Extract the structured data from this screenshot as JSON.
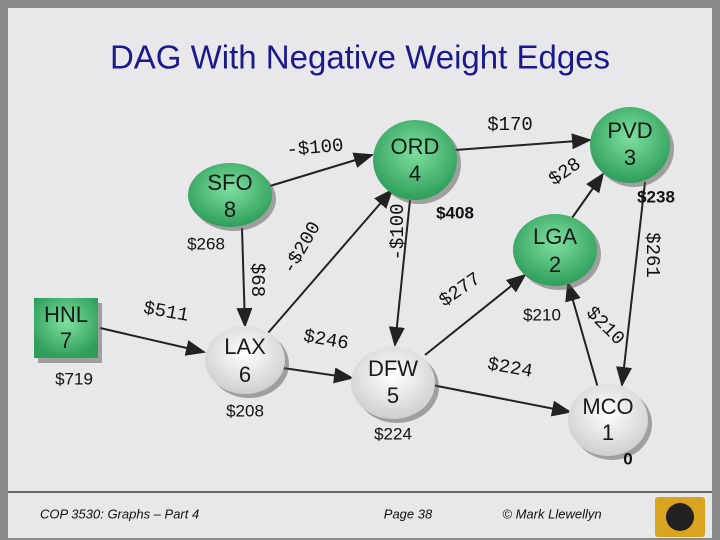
{
  "title": "DAG With Negative Weight Edges",
  "nodes": [
    {
      "name": "HNL",
      "number": "7",
      "distance": "$719"
    },
    {
      "name": "SFO",
      "number": "8",
      "distance": "$268"
    },
    {
      "name": "ORD",
      "number": "4",
      "distance": "$408"
    },
    {
      "name": "PVD",
      "number": "3",
      "distance": "$238"
    },
    {
      "name": "LGA",
      "number": "2",
      "distance": "$210"
    },
    {
      "name": "LAX",
      "number": "6",
      "distance": "$208"
    },
    {
      "name": "DFW",
      "number": "5",
      "distance": "$224"
    },
    {
      "name": "MCO",
      "number": "1",
      "distance": "0"
    }
  ],
  "edges": [
    {
      "label": "-$100"
    },
    {
      "label": "$170"
    },
    {
      "label": "$28"
    },
    {
      "label": "-$100"
    },
    {
      "label": "-$200"
    },
    {
      "label": "$68"
    },
    {
      "label": "$511"
    },
    {
      "label": "$246"
    },
    {
      "label": "$277"
    },
    {
      "label": "$261"
    },
    {
      "label": "$210"
    },
    {
      "label": "$224"
    }
  ],
  "footer": {
    "course": "COP 3530: Graphs – Part 4",
    "page": "Page 38",
    "author": "© Mark Llewellyn"
  }
}
